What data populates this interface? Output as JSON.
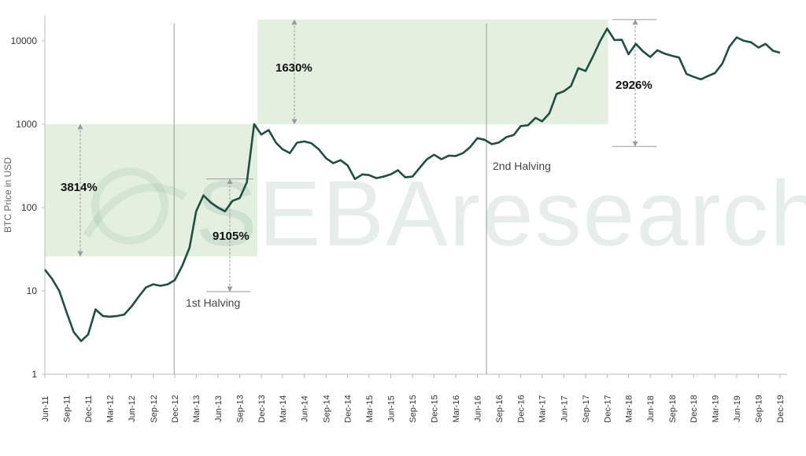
{
  "chart_data": {
    "type": "line",
    "title": "",
    "xlabel": "",
    "ylabel": "BTC Price in USD",
    "y_scale": "log",
    "ylim": [
      1,
      20000
    ],
    "y_ticks": [
      1,
      10,
      100,
      1000,
      10000
    ],
    "y_tick_labels": [
      "1",
      "10",
      "100",
      "1000",
      "10000"
    ],
    "x_ticks": [
      "Jun-11",
      "Sep-11",
      "Dec-11",
      "Mar-12",
      "Jun-12",
      "Sep-12",
      "Dec-12",
      "Mar-13",
      "Jun-13",
      "Sep-13",
      "Dec-13",
      "Mar-14",
      "Jun-14",
      "Sep-14",
      "Dec-14",
      "Mar-15",
      "Jun-15",
      "Sep-15",
      "Dec-15",
      "Mar-16",
      "Jun-16",
      "Sep-16",
      "Dec-16",
      "Mar-17",
      "Jun-17",
      "Sep-17",
      "Dec-17",
      "Mar-18",
      "Jun-18",
      "Sep-18",
      "Dec-18",
      "Mar-19",
      "Jun-19",
      "Sep-19",
      "Dec-19"
    ],
    "series": [
      {
        "color": "#1f4f40",
        "points": [
          [
            "2011-06",
            18
          ],
          [
            "2011-07",
            14
          ],
          [
            "2011-08",
            10
          ],
          [
            "2011-09",
            5.5
          ],
          [
            "2011-10",
            3.2
          ],
          [
            "2011-11",
            2.5
          ],
          [
            "2011-12",
            3.0
          ],
          [
            "2012-01",
            6.0
          ],
          [
            "2012-02",
            5.0
          ],
          [
            "2012-03",
            4.9
          ],
          [
            "2012-04",
            5.0
          ],
          [
            "2012-05",
            5.2
          ],
          [
            "2012-06",
            6.5
          ],
          [
            "2012-07",
            8.5
          ],
          [
            "2012-08",
            11
          ],
          [
            "2012-09",
            12
          ],
          [
            "2012-10",
            11.5
          ],
          [
            "2012-11",
            12
          ],
          [
            "2012-12",
            13.5
          ],
          [
            "2013-01",
            20
          ],
          [
            "2013-02",
            33
          ],
          [
            "2013-03",
            90
          ],
          [
            "2013-04",
            140
          ],
          [
            "2013-05",
            115
          ],
          [
            "2013-06",
            100
          ],
          [
            "2013-07",
            90
          ],
          [
            "2013-08",
            120
          ],
          [
            "2013-09",
            130
          ],
          [
            "2013-10",
            200
          ],
          [
            "2013-11",
            1000
          ],
          [
            "2013-12",
            750
          ],
          [
            "2014-01",
            850
          ],
          [
            "2014-02",
            600
          ],
          [
            "2014-03",
            500
          ],
          [
            "2014-04",
            450
          ],
          [
            "2014-05",
            600
          ],
          [
            "2014-06",
            620
          ],
          [
            "2014-07",
            590
          ],
          [
            "2014-08",
            500
          ],
          [
            "2014-09",
            390
          ],
          [
            "2014-10",
            340
          ],
          [
            "2014-11",
            370
          ],
          [
            "2014-12",
            320
          ],
          [
            "2015-01",
            220
          ],
          [
            "2015-02",
            250
          ],
          [
            "2015-03",
            245
          ],
          [
            "2015-04",
            225
          ],
          [
            "2015-05",
            235
          ],
          [
            "2015-06",
            250
          ],
          [
            "2015-07",
            280
          ],
          [
            "2015-08",
            230
          ],
          [
            "2015-09",
            235
          ],
          [
            "2015-10",
            300
          ],
          [
            "2015-11",
            380
          ],
          [
            "2015-12",
            430
          ],
          [
            "2016-01",
            380
          ],
          [
            "2016-02",
            420
          ],
          [
            "2016-03",
            415
          ],
          [
            "2016-04",
            450
          ],
          [
            "2016-05",
            530
          ],
          [
            "2016-06",
            680
          ],
          [
            "2016-07",
            650
          ],
          [
            "2016-08",
            575
          ],
          [
            "2016-09",
            605
          ],
          [
            "2016-10",
            700
          ],
          [
            "2016-11",
            740
          ],
          [
            "2016-12",
            950
          ],
          [
            "2017-01",
            970
          ],
          [
            "2017-02",
            1190
          ],
          [
            "2017-03",
            1080
          ],
          [
            "2017-04",
            1350
          ],
          [
            "2017-05",
            2300
          ],
          [
            "2017-06",
            2480
          ],
          [
            "2017-07",
            2870
          ],
          [
            "2017-08",
            4700
          ],
          [
            "2017-09",
            4340
          ],
          [
            "2017-10",
            6400
          ],
          [
            "2017-11",
            9900
          ],
          [
            "2017-12",
            14000
          ],
          [
            "2018-01",
            10200
          ],
          [
            "2018-02",
            10300
          ],
          [
            "2018-03",
            6900
          ],
          [
            "2018-04",
            9200
          ],
          [
            "2018-05",
            7500
          ],
          [
            "2018-06",
            6400
          ],
          [
            "2018-07",
            7700
          ],
          [
            "2018-08",
            7000
          ],
          [
            "2018-09",
            6600
          ],
          [
            "2018-10",
            6300
          ],
          [
            "2018-11",
            4000
          ],
          [
            "2018-12",
            3700
          ],
          [
            "2019-01",
            3450
          ],
          [
            "2019-02",
            3800
          ],
          [
            "2019-03",
            4100
          ],
          [
            "2019-04",
            5300
          ],
          [
            "2019-05",
            8500
          ],
          [
            "2019-06",
            11000
          ],
          [
            "2019-07",
            10000
          ],
          [
            "2019-08",
            9600
          ],
          [
            "2019-09",
            8300
          ],
          [
            "2019-10",
            9200
          ],
          [
            "2019-11",
            7600
          ],
          [
            "2019-12",
            7200
          ]
        ]
      }
    ],
    "halvings": [
      {
        "date": "2012-11-28",
        "label": "1st Halving"
      },
      {
        "date": "2016-07-09",
        "label": "2nd Halving"
      }
    ],
    "annotations": [
      {
        "label": "3814%",
        "from": 26,
        "to": 1000,
        "x_start": "2011-06",
        "x_end": "2013-11-15"
      },
      {
        "label": "9105%",
        "from": 9.8,
        "to": 220,
        "x_start": "2013-03",
        "x_end": "2013-10"
      },
      {
        "label": "1630%",
        "from": 1000,
        "to": 18000,
        "x_start": "2013-11-15",
        "x_end": "2017-12-05"
      },
      {
        "label": "2926%",
        "from": 540,
        "to": 18000,
        "x_start": "2017-12-05",
        "x_end": "2018-05-20"
      }
    ],
    "watermark": "SEBAresearch",
    "grid": false
  }
}
